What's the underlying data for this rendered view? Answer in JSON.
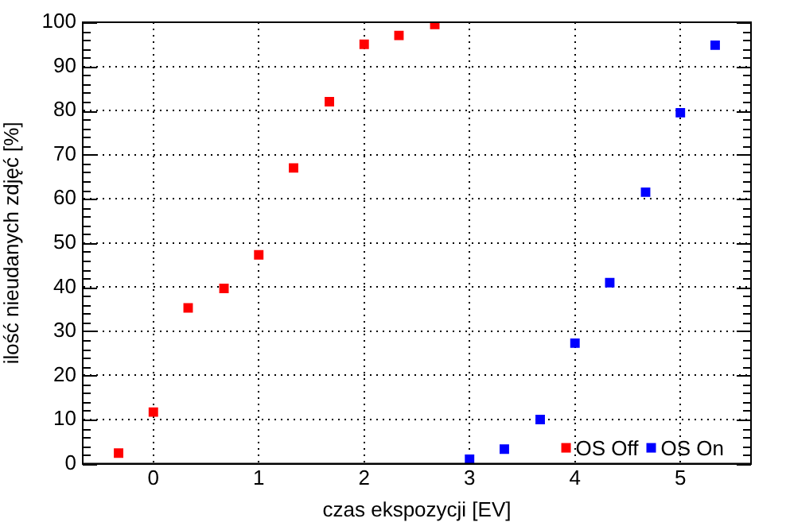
{
  "chart_data": {
    "type": "scatter",
    "xlabel": "czas ekspozycji [EV]",
    "ylabel": "ilość nieudanych zdjęć [%]",
    "series": [
      {
        "name": "OS Off",
        "color": "#ff0000",
        "x": [
          -0.33,
          0,
          0.33,
          0.67,
          1,
          1.33,
          1.67,
          2,
          2.33,
          2.67
        ],
        "values": [
          2.4,
          11.7,
          35.3,
          39.7,
          47.3,
          67,
          82,
          95,
          97,
          99.5
        ]
      },
      {
        "name": "OS On",
        "color": "#0000ff",
        "x": [
          3,
          3.33,
          3.67,
          4,
          4.33,
          4.67,
          5,
          5.33
        ],
        "values": [
          1,
          3.3,
          10,
          27.3,
          41,
          61.5,
          79.5,
          94.8
        ]
      }
    ],
    "xlim": [
      -0.67,
      5.67
    ],
    "xticks": [
      0,
      1,
      2,
      3,
      4,
      5
    ],
    "ylim": [
      0,
      100
    ],
    "yticks": [
      0,
      10,
      20,
      30,
      40,
      50,
      60,
      70,
      80,
      90,
      100
    ],
    "grid": true,
    "legend": "bottom right",
    "marker": "square"
  }
}
